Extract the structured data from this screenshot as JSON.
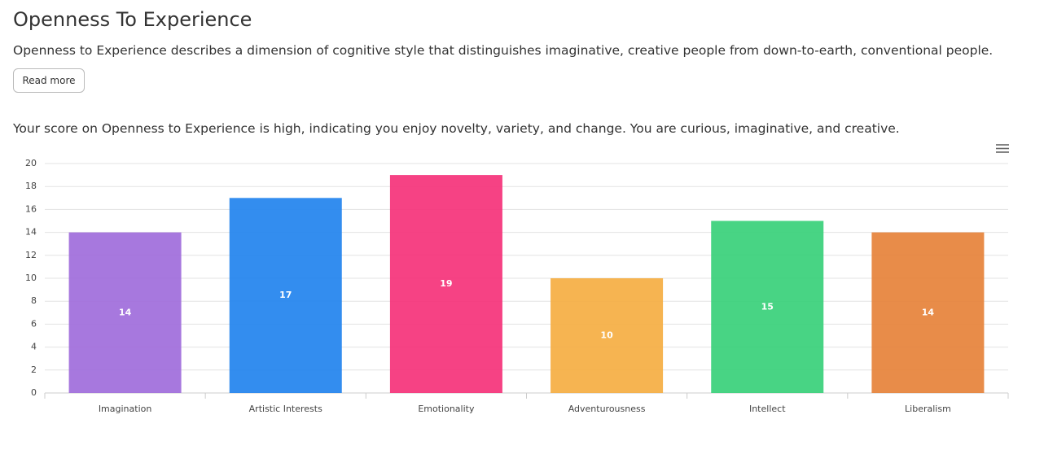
{
  "header": {
    "title": "Openness To Experience",
    "description": "Openness to Experience describes a dimension of cognitive style that distinguishes imaginative, creative people from down-to-earth, conventional people.",
    "button": "Read more"
  },
  "score_text": "Your score on Openness to Experience is high, indicating you enjoy novelty, variety, and change. You are curious, imaginative, and creative.",
  "chart_data": {
    "type": "bar",
    "categories": [
      "Imagination",
      "Artistic Interests",
      "Emotionality",
      "Adventurousness",
      "Intellect",
      "Liberalism"
    ],
    "values": [
      14,
      17,
      19,
      10,
      15,
      14
    ],
    "colors": [
      "#a06cdb",
      "#2283ee",
      "#f5327a",
      "#f5ae42",
      "#38d07a",
      "#e6823a"
    ],
    "ylim": [
      0,
      20
    ],
    "yticks": [
      0,
      2,
      4,
      6,
      8,
      10,
      12,
      14,
      16,
      18,
      20
    ],
    "grid": true
  }
}
